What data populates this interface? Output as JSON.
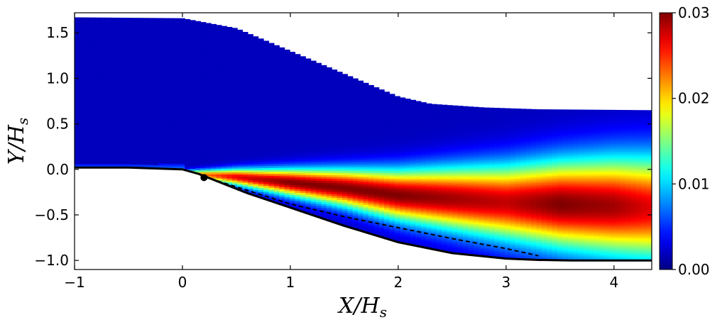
{
  "chart_data": {
    "type": "heatmap",
    "title": "",
    "xlabel": "X/Hs",
    "ylabel": "Y/Hs",
    "xlim": [
      -1,
      4.35
    ],
    "ylim": [
      -1.1,
      1.72
    ],
    "x_ticks": [
      {
        "value": -1,
        "label": "−1"
      },
      {
        "value": 0,
        "label": "0"
      },
      {
        "value": 1,
        "label": "1"
      },
      {
        "value": 2,
        "label": "2"
      },
      {
        "value": 3,
        "label": "3"
      },
      {
        "value": 4,
        "label": "4"
      }
    ],
    "y_ticks": [
      {
        "value": -1.0,
        "label": "−1.0"
      },
      {
        "value": -0.5,
        "label": "−0.5"
      },
      {
        "value": 0.0,
        "label": "0.0"
      },
      {
        "value": 0.5,
        "label": "0.5"
      },
      {
        "value": 1.0,
        "label": "1.0"
      },
      {
        "value": 1.5,
        "label": "1.5"
      }
    ],
    "colorbar": {
      "colormap": "jet",
      "min": 0.0,
      "max": 0.03,
      "ticks": [
        {
          "value": 0.0,
          "label": "0.00"
        },
        {
          "value": 0.01,
          "label": "0.01"
        },
        {
          "value": 0.02,
          "label": "0.02"
        },
        {
          "value": 0.03,
          "label": "0.03"
        }
      ]
    },
    "wall_profile": {
      "x": [
        -1.0,
        -0.5,
        0.0,
        0.15,
        0.3,
        0.6,
        1.0,
        1.5,
        2.0,
        2.5,
        3.0,
        3.3,
        3.6,
        4.0,
        4.35
      ],
      "y": [
        0.02,
        0.02,
        0.0,
        -0.05,
        -0.12,
        -0.26,
        -0.42,
        -0.62,
        -0.8,
        -0.92,
        -0.98,
        -0.995,
        -1.0,
        -1.0,
        -1.0
      ]
    },
    "upper_boundary": {
      "x": [
        -1.0,
        0.0,
        0.5,
        1.0,
        1.5,
        2.0,
        2.3,
        2.8,
        3.3,
        4.35
      ],
      "y": [
        1.67,
        1.66,
        1.55,
        1.3,
        1.05,
        0.8,
        0.72,
        0.68,
        0.66,
        0.65
      ]
    },
    "dashed_line": {
      "x": [
        0.2,
        0.6,
        1.0,
        1.5,
        2.0,
        2.5,
        3.0,
        3.3
      ],
      "y": [
        -0.08,
        -0.23,
        -0.38,
        -0.52,
        -0.64,
        -0.76,
        -0.87,
        -0.95
      ]
    },
    "separation_point": {
      "x": 0.2,
      "y": -0.09
    },
    "shear_layer": {
      "x": [
        0.0,
        0.5,
        1.0,
        1.5,
        2.0,
        2.5,
        3.0,
        3.5,
        4.0,
        4.35
      ],
      "center_y": [
        -0.04,
        -0.08,
        -0.14,
        -0.2,
        -0.28,
        -0.32,
        -0.36,
        -0.38,
        -0.4,
        -0.42
      ],
      "half_width": [
        0.03,
        0.08,
        0.13,
        0.18,
        0.24,
        0.3,
        0.36,
        0.42,
        0.47,
        0.5
      ],
      "peak_value": [
        0.02,
        0.027,
        0.03,
        0.03,
        0.03,
        0.029,
        0.028,
        0.03,
        0.029,
        0.027
      ]
    }
  }
}
